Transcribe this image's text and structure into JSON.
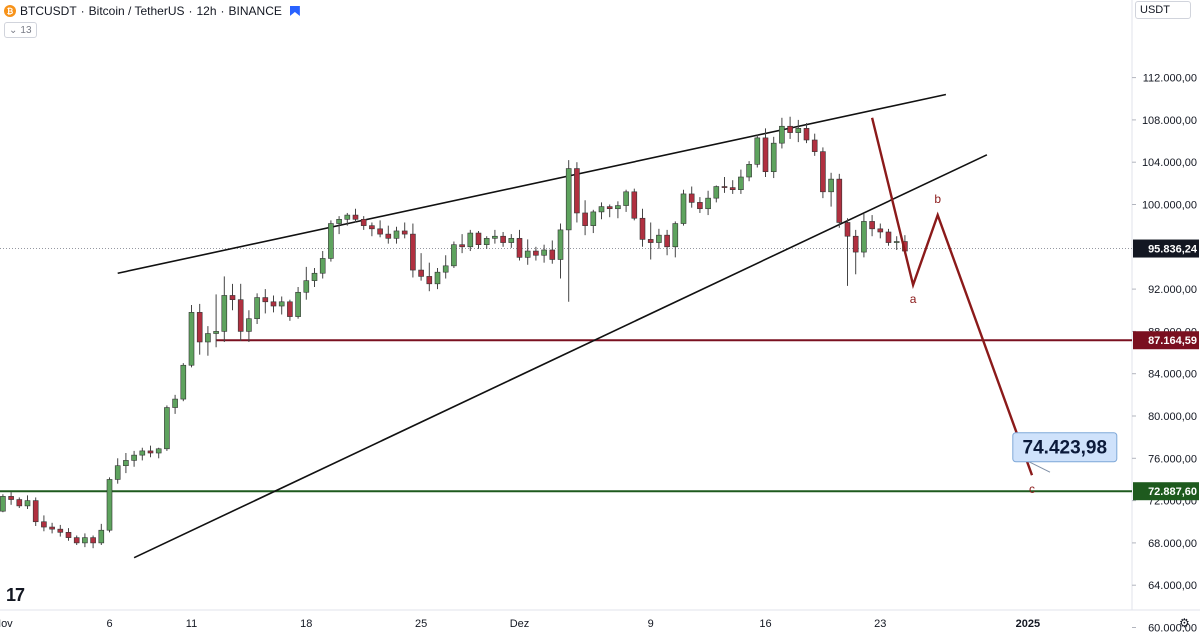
{
  "header": {
    "symbol": "BTCUSDT",
    "separator1": "·",
    "name": "Bitcoin / TetherUS",
    "separator2": "·",
    "interval": "12h",
    "separator3": "·",
    "exchange": "BINANCE",
    "coin_glyph": "₿"
  },
  "indicator_toggle": {
    "glyph": "⌄",
    "count": "13"
  },
  "currency": "USDT",
  "logo_text": "17",
  "colors": {
    "up": "#5ea35e",
    "down": "#b03040",
    "wick": "#444444",
    "wave": "#8b1a1a",
    "resistance": "#7a1020",
    "support": "#1e5a1e",
    "trendline": "#111111",
    "last_price": "#131722",
    "target_fill": "#cfe2fb",
    "target_border": "#7fa8d8"
  },
  "chart_data": {
    "type": "candlestick",
    "symbol": "BTCUSDT",
    "interval": "12h",
    "y_axis_ticks": [
      "112.000,00",
      "108.000,00",
      "104.000,00",
      "100.000,00",
      "92.000,00",
      "88.000,00",
      "84.000,00",
      "80.000,00",
      "76.000,00",
      "72.000,00",
      "68.000,00",
      "64.000,00",
      "60.000,00"
    ],
    "y_axis_tick_values": [
      112000,
      108000,
      104000,
      100000,
      92000,
      88000,
      84000,
      80000,
      76000,
      72000,
      68000,
      64000,
      60000
    ],
    "ylim": [
      60000,
      114000
    ],
    "x_axis_labels": [
      {
        "text": "Nov",
        "index": 0
      },
      {
        "text": "6",
        "index": 13
      },
      {
        "text": "11",
        "index": 23
      },
      {
        "text": "18",
        "index": 37
      },
      {
        "text": "25",
        "index": 51
      },
      {
        "text": "Dez",
        "index": 63
      },
      {
        "text": "9",
        "index": 79
      },
      {
        "text": "16",
        "index": 93
      },
      {
        "text": "23",
        "index": 107
      },
      {
        "text": "2025",
        "index": 125
      }
    ],
    "x_range": [
      -4,
      134
    ],
    "candles": [
      [
        71000,
        72600,
        70900,
        72400
      ],
      [
        72400,
        72800,
        71600,
        72100
      ],
      [
        72100,
        72300,
        71300,
        71500
      ],
      [
        71500,
        72500,
        71200,
        72000
      ],
      [
        72000,
        72300,
        69600,
        70000
      ],
      [
        70000,
        70600,
        69100,
        69500
      ],
      [
        69500,
        69900,
        68900,
        69300
      ],
      [
        69300,
        69700,
        68600,
        69000
      ],
      [
        69000,
        69400,
        68200,
        68500
      ],
      [
        68500,
        68700,
        67800,
        68000
      ],
      [
        68000,
        68900,
        67600,
        68500
      ],
      [
        68500,
        68700,
        67500,
        68000
      ],
      [
        68000,
        69800,
        67800,
        69200
      ],
      [
        69200,
        74200,
        69000,
        74000
      ],
      [
        74000,
        76000,
        73600,
        75300
      ],
      [
        75300,
        76500,
        74600,
        75800
      ],
      [
        75800,
        76700,
        75200,
        76300
      ],
      [
        76300,
        77000,
        75800,
        76700
      ],
      [
        76700,
        77200,
        76100,
        76500
      ],
      [
        76500,
        77000,
        76000,
        76900
      ],
      [
        76900,
        81000,
        76700,
        80800
      ],
      [
        80800,
        82000,
        80200,
        81600
      ],
      [
        81600,
        85000,
        81400,
        84800
      ],
      [
        84800,
        90500,
        84600,
        89800
      ],
      [
        89800,
        90600,
        85800,
        87000
      ],
      [
        87000,
        88500,
        85700,
        87800
      ],
      [
        87800,
        91500,
        86500,
        88000
      ],
      [
        88000,
        93200,
        87000,
        91400
      ],
      [
        91400,
        92500,
        90000,
        91000
      ],
      [
        91000,
        92500,
        87100,
        88000
      ],
      [
        88000,
        90000,
        87000,
        89200
      ],
      [
        89200,
        91600,
        88700,
        91200
      ],
      [
        91200,
        92000,
        89700,
        90800
      ],
      [
        90800,
        91400,
        89800,
        90400
      ],
      [
        90400,
        91300,
        89600,
        90800
      ],
      [
        90800,
        91000,
        89000,
        89400
      ],
      [
        89400,
        92200,
        89200,
        91700
      ],
      [
        91700,
        94100,
        91000,
        92800
      ],
      [
        92800,
        94000,
        92200,
        93500
      ],
      [
        93500,
        95600,
        93000,
        94900
      ],
      [
        94900,
        98500,
        94600,
        98200
      ],
      [
        98200,
        98900,
        97200,
        98600
      ],
      [
        98600,
        99200,
        98000,
        99000
      ],
      [
        99000,
        99600,
        98300,
        98600
      ],
      [
        98600,
        98900,
        97600,
        98000
      ],
      [
        98000,
        98300,
        97000,
        97700
      ],
      [
        97700,
        98500,
        96900,
        97200
      ],
      [
        97200,
        98000,
        96300,
        96800
      ],
      [
        96800,
        97900,
        96300,
        97500
      ],
      [
        97500,
        98300,
        96800,
        97200
      ],
      [
        97200,
        98200,
        93100,
        93800
      ],
      [
        93800,
        95400,
        92800,
        93200
      ],
      [
        93200,
        94500,
        91800,
        92500
      ],
      [
        92500,
        94000,
        92000,
        93600
      ],
      [
        93600,
        95200,
        93000,
        94200
      ],
      [
        94200,
        96500,
        94000,
        96200
      ],
      [
        96200,
        97200,
        95400,
        96000
      ],
      [
        96000,
        97600,
        95600,
        97300
      ],
      [
        97300,
        97500,
        95800,
        96200
      ],
      [
        96200,
        97000,
        95800,
        96800
      ],
      [
        96800,
        97600,
        96300,
        97000
      ],
      [
        97000,
        97400,
        96000,
        96400
      ],
      [
        96400,
        97200,
        95900,
        96800
      ],
      [
        96800,
        97600,
        94700,
        95000
      ],
      [
        95000,
        96700,
        94300,
        95600
      ],
      [
        95600,
        96000,
        94700,
        95200
      ],
      [
        95200,
        96200,
        94500,
        95700
      ],
      [
        95700,
        96600,
        94400,
        94800
      ],
      [
        94800,
        98200,
        93000,
        97600
      ],
      [
        97600,
        104200,
        90800,
        103400
      ],
      [
        103400,
        104000,
        98300,
        99200
      ],
      [
        99200,
        100400,
        97100,
        98000
      ],
      [
        98000,
        99500,
        97300,
        99300
      ],
      [
        99300,
        100200,
        98600,
        99800
      ],
      [
        99800,
        100000,
        98800,
        99600
      ],
      [
        99600,
        100300,
        98700,
        99900
      ],
      [
        99900,
        101400,
        99300,
        101200
      ],
      [
        101200,
        101500,
        98500,
        98700
      ],
      [
        98700,
        99600,
        96000,
        96700
      ],
      [
        96700,
        98300,
        94800,
        96400
      ],
      [
        96400,
        97700,
        95800,
        97100
      ],
      [
        97100,
        97600,
        95200,
        96000
      ],
      [
        96000,
        98400,
        95000,
        98200
      ],
      [
        98200,
        101400,
        98000,
        101000
      ],
      [
        101000,
        101700,
        99700,
        100200
      ],
      [
        100200,
        100700,
        99200,
        99600
      ],
      [
        99600,
        101300,
        99000,
        100600
      ],
      [
        100600,
        101800,
        100200,
        101700
      ],
      [
        101700,
        102600,
        101100,
        101600
      ],
      [
        101600,
        102300,
        101000,
        101400
      ],
      [
        101400,
        103300,
        101000,
        102600
      ],
      [
        102600,
        104100,
        102200,
        103800
      ],
      [
        103800,
        106600,
        103500,
        106300
      ],
      [
        106300,
        107200,
        102600,
        103100
      ],
      [
        103100,
        106400,
        102500,
        105800
      ],
      [
        105800,
        108200,
        105300,
        107400
      ],
      [
        107400,
        108300,
        106200,
        106800
      ],
      [
        106800,
        108000,
        105900,
        107200
      ],
      [
        107200,
        107700,
        105800,
        106100
      ],
      [
        106100,
        106700,
        104600,
        105000
      ],
      [
        105000,
        105400,
        100600,
        101200
      ],
      [
        101200,
        103000,
        99800,
        102400
      ],
      [
        102400,
        102900,
        97800,
        98300
      ],
      [
        98300,
        98700,
        92300,
        97000
      ],
      [
        97000,
        97600,
        93400,
        95500
      ],
      [
        95500,
        99100,
        95000,
        98400
      ],
      [
        98400,
        99000,
        97000,
        97700
      ],
      [
        97700,
        98200,
        96800,
        97400
      ],
      [
        97400,
        97700,
        96100,
        96400
      ],
      [
        96400,
        97000,
        95700,
        96500
      ],
      [
        96500,
        97100,
        95300,
        95600
      ]
    ],
    "last_price": 95836.24,
    "last_price_label": "95.836,24",
    "trendlines": [
      {
        "name": "upper-trendline",
        "points": [
          [
            14,
            93500
          ],
          [
            115,
            110400
          ]
        ]
      },
      {
        "name": "lower-trendline",
        "points": [
          [
            16,
            66600
          ],
          [
            120,
            104700
          ]
        ]
      }
    ],
    "horizontal_levels": [
      {
        "name": "resistance-level",
        "price": 87164.59,
        "label": "87.164,59",
        "from_index": 26
      },
      {
        "name": "support-level",
        "price": 72887.6,
        "label": "72.887,60",
        "from_index": -4
      }
    ],
    "wave_path": [
      [
        106,
        108200
      ],
      [
        111,
        92400
      ],
      [
        114,
        99000
      ],
      [
        125.5,
        74400
      ]
    ],
    "wave_labels": [
      {
        "text": "a",
        "index": 111,
        "price": 92400,
        "position": "below"
      },
      {
        "text": "b",
        "index": 114,
        "price": 99000,
        "position": "above"
      },
      {
        "text": "c",
        "index": 125.5,
        "price": 74400,
        "position": "below"
      }
    ],
    "target_label": {
      "text": "74.423,98",
      "index": 129.5,
      "price": 77000
    }
  }
}
